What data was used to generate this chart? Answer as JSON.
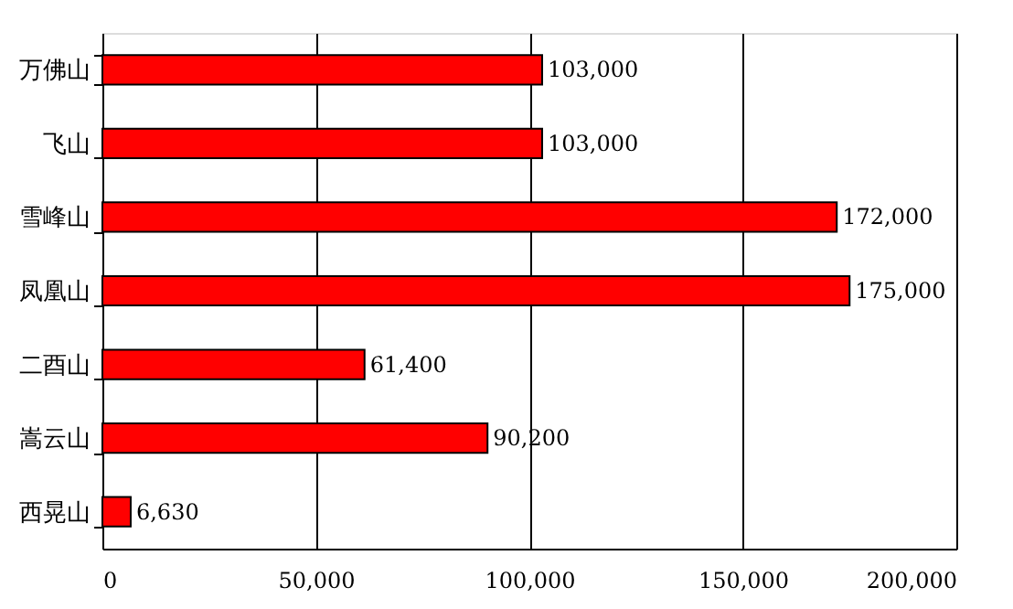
{
  "chart_data": {
    "type": "bar",
    "orientation": "horizontal",
    "categories": [
      "万佛山",
      "飞山",
      "雪峰山",
      "凤凰山",
      "二酉山",
      "嵩云山",
      "西晃山"
    ],
    "values": [
      103000,
      103000,
      172000,
      175000,
      61400,
      90200,
      6630
    ],
    "value_labels": [
      "103,000",
      "103,000",
      "172,000",
      "175,000",
      "61,400",
      "90,200",
      "6,630"
    ],
    "color": "#ff0000",
    "xlim": [
      0,
      200000
    ],
    "xticks": [
      {
        "value": 0,
        "label": "0"
      },
      {
        "value": 50000,
        "label": "50,000"
      },
      {
        "value": 100000,
        "label": "100,000"
      },
      {
        "value": 150000,
        "label": "150,000"
      },
      {
        "value": 200000,
        "label": "200,000"
      }
    ],
    "grid": "x"
  }
}
